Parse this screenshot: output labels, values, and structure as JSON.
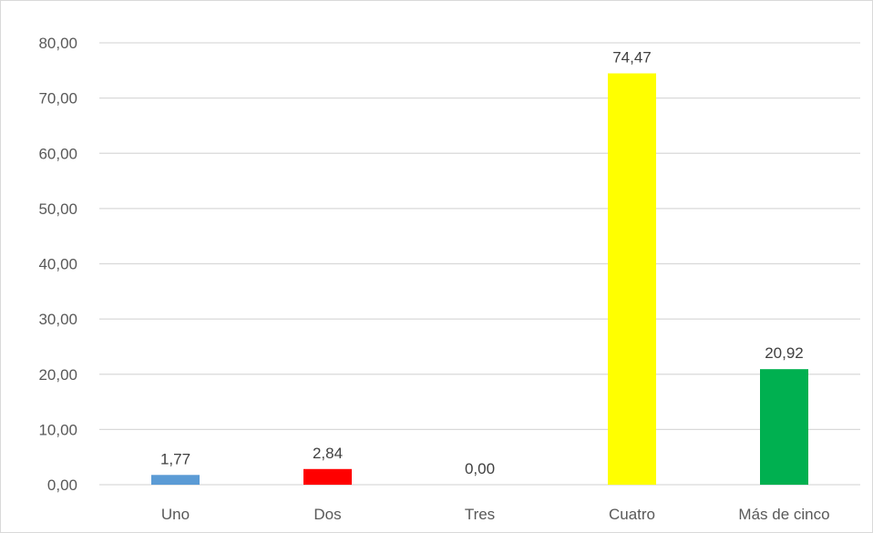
{
  "chart_data": {
    "type": "bar",
    "title": "",
    "xlabel": "",
    "ylabel": "",
    "categories": [
      "Uno",
      "Dos",
      "Tres",
      "Cuatro",
      "Más de cinco"
    ],
    "values": [
      1.77,
      2.84,
      0.0,
      74.47,
      20.92
    ],
    "value_labels": [
      "1,77",
      "2,84",
      "0,00",
      "74,47",
      "20,92"
    ],
    "colors": [
      "#5b9bd5",
      "#ff0000",
      "#ffff00",
      "#ffff00",
      "#00b050"
    ],
    "ylim": [
      0,
      80
    ],
    "yticks": [
      0,
      10,
      20,
      30,
      40,
      50,
      60,
      70,
      80
    ],
    "ytick_labels": [
      "0,00",
      "10,00",
      "20,00",
      "30,00",
      "40,00",
      "50,00",
      "60,00",
      "70,00",
      "80,00"
    ],
    "grid": true,
    "legend": "none",
    "gridline_color": "#d9d9d9"
  }
}
